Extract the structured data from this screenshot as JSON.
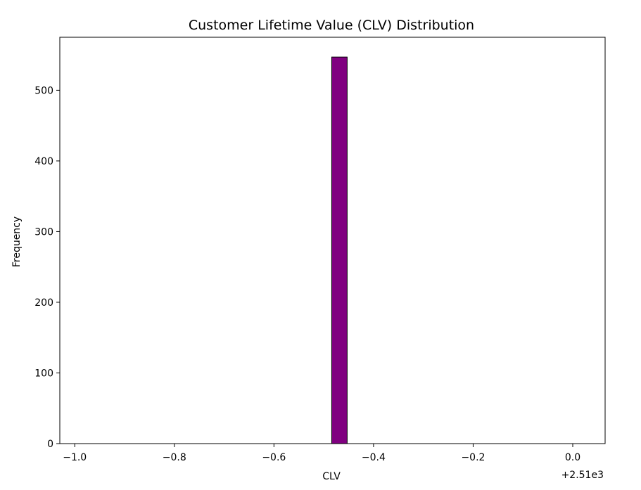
{
  "chart_data": {
    "type": "bar",
    "title": "Customer Lifetime Value (CLV) Distribution",
    "xlabel": "CLV",
    "ylabel": "Frequency",
    "x_offset_label": "+2.51e3",
    "xlim": [
      -1.03,
      0.065
    ],
    "ylim": [
      0,
      575
    ],
    "xticks": [
      -1.0,
      -0.8,
      -0.6,
      -0.4,
      -0.2,
      0.0
    ],
    "xtick_labels": [
      "−1.0",
      "−0.8",
      "−0.6",
      "−0.4",
      "−0.2",
      "0.0"
    ],
    "yticks": [
      0,
      100,
      200,
      300,
      400,
      500
    ],
    "ytick_labels": [
      "0",
      "100",
      "200",
      "300",
      "400",
      "500"
    ],
    "bars": [
      {
        "x0": -0.484,
        "x1": -0.453,
        "value": 547
      }
    ],
    "bar_color": "#800080",
    "edge_color": "#000000",
    "grid": false
  }
}
